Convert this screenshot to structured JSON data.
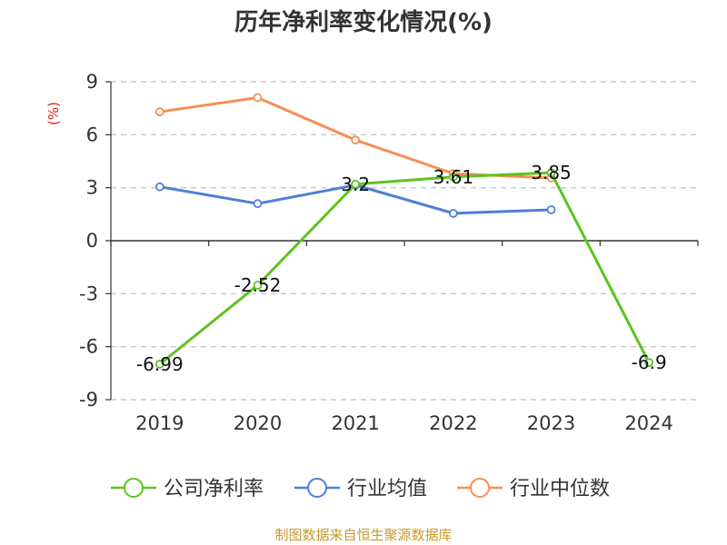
{
  "chart_data": {
    "type": "line",
    "title": "历年净利率变化情况(%)",
    "unit_label": "(%)",
    "categories": [
      "2019",
      "2020",
      "2021",
      "2022",
      "2023",
      "2024"
    ],
    "ylim": [
      -9,
      9
    ],
    "yticks": [
      9,
      6,
      3,
      0,
      -3,
      -6,
      -9
    ],
    "grid": true,
    "legend_position": "bottom",
    "series": [
      {
        "name": "公司净利率",
        "color": "#5cc41e",
        "values": [
          -6.99,
          -2.52,
          3.2,
          3.61,
          3.85,
          -6.9
        ],
        "labels": [
          "-6.99",
          "-2.52",
          "3.2",
          "3.61",
          "3.85",
          "-6.9"
        ]
      },
      {
        "name": "行业均值",
        "color": "#4f7fd8",
        "values": [
          3.05,
          2.1,
          3.15,
          1.55,
          1.75,
          null
        ]
      },
      {
        "name": "行业中位数",
        "color": "#f78e55",
        "values": [
          7.3,
          8.1,
          5.7,
          3.8,
          3.55,
          null
        ]
      }
    ]
  },
  "source": "制图数据来自恒生聚源数据库"
}
